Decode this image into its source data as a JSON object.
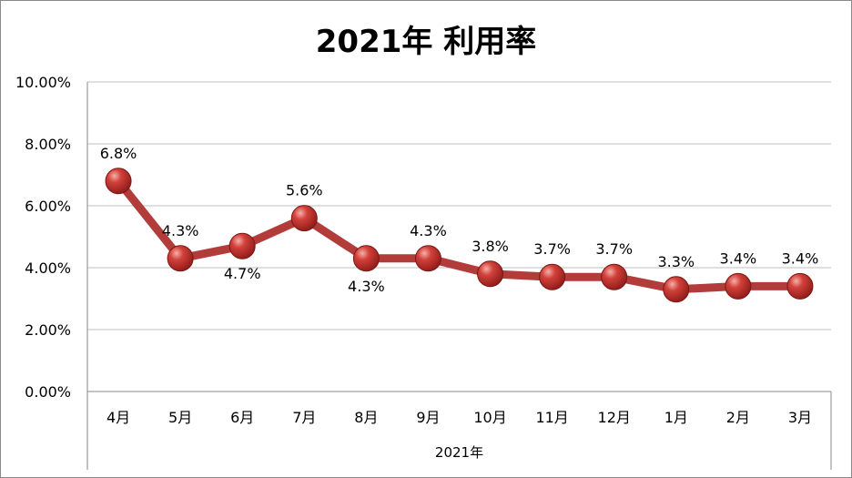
{
  "chart_data": {
    "type": "line",
    "title": "2021年  利用率",
    "xlabel": "2021年",
    "ylabel": "",
    "categories": [
      "4月",
      "5月",
      "6月",
      "7月",
      "8月",
      "9月",
      "10月",
      "11月",
      "12月",
      "1月",
      "2月",
      "3月"
    ],
    "values": [
      6.8,
      4.3,
      4.7,
      5.6,
      4.3,
      4.3,
      3.8,
      3.7,
      3.7,
      3.3,
      3.4,
      3.4
    ],
    "data_labels": [
      "6.8%",
      "4.3%",
      "4.7%",
      "5.6%",
      "4.3%",
      "4.3%",
      "3.8%",
      "3.7%",
      "3.7%",
      "3.3%",
      "3.4%",
      "3.4%"
    ],
    "label_position": [
      "above",
      "above",
      "below",
      "above",
      "below",
      "above",
      "above",
      "above",
      "above",
      "above",
      "above",
      "above"
    ],
    "yticks": [
      0,
      2,
      4,
      6,
      8,
      10
    ],
    "ytick_labels": [
      "0.00%",
      "2.00%",
      "4.00%",
      "6.00%",
      "8.00%",
      "10.00%"
    ],
    "ylim": [
      0,
      10
    ],
    "grid": true,
    "legend": "none",
    "colors": {
      "line": "#b23c3a",
      "marker": "#c0302c",
      "grid": "#bfbfbf"
    }
  }
}
